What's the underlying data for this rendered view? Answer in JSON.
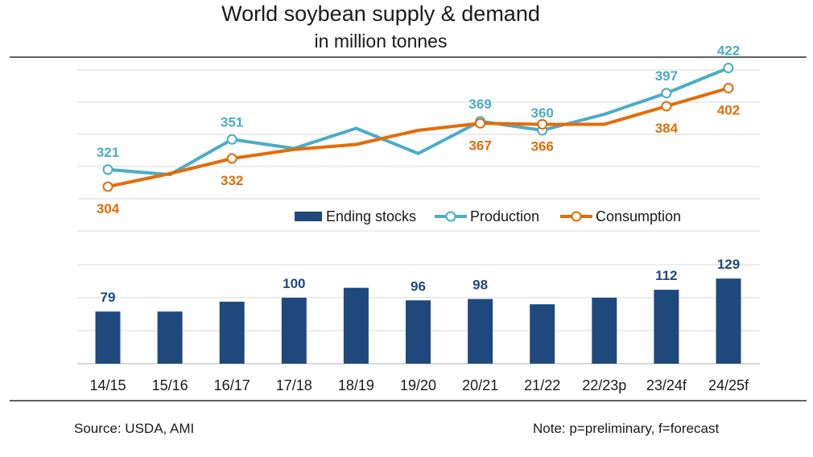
{
  "title": "World soybean supply & demand",
  "subtitle": "in million tonnes",
  "source": "Source: USDA, AMI",
  "note": "Note: p=preliminary, f=forecast",
  "colors": {
    "production": "#4bacc6",
    "consumption": "#e36c0a",
    "stocks": "#1f497d",
    "grid": "#d9d9d9"
  },
  "chart_data": {
    "type": "bar+line",
    "categories": [
      "14/15",
      "15/16",
      "16/17",
      "17/18",
      "18/19",
      "19/20",
      "20/21",
      "21/22",
      "22/23p",
      "23/24f",
      "24/25f"
    ],
    "legend": [
      "Ending stocks",
      "Production",
      "Consumption"
    ],
    "series": [
      {
        "name": "Ending stocks",
        "type": "bar",
        "values": [
          79,
          79,
          94,
          100,
          115,
          96,
          98,
          90,
          100,
          112,
          129
        ],
        "labels": [
          "79",
          "",
          "",
          "100",
          "",
          "96",
          "98",
          "",
          "",
          "112",
          "129"
        ]
      },
      {
        "name": "Production",
        "type": "line",
        "values": [
          321,
          316,
          351,
          342,
          362,
          337,
          369,
          360,
          376,
          397,
          422
        ],
        "labels": [
          "321",
          "",
          "351",
          "",
          "",
          "",
          "369",
          "360",
          "",
          "397",
          "422"
        ]
      },
      {
        "name": "Consumption",
        "type": "line",
        "values": [
          304,
          317,
          332,
          341,
          346,
          360,
          367,
          366,
          366,
          384,
          402
        ],
        "labels": [
          "304",
          "",
          "332",
          "",
          "",
          "",
          "367",
          "366",
          "",
          "384",
          "402"
        ]
      }
    ],
    "line_ylim": [
      260,
      440
    ],
    "bar_ylim": [
      0,
      200
    ],
    "grid": true,
    "legend_position": "middle-right"
  }
}
